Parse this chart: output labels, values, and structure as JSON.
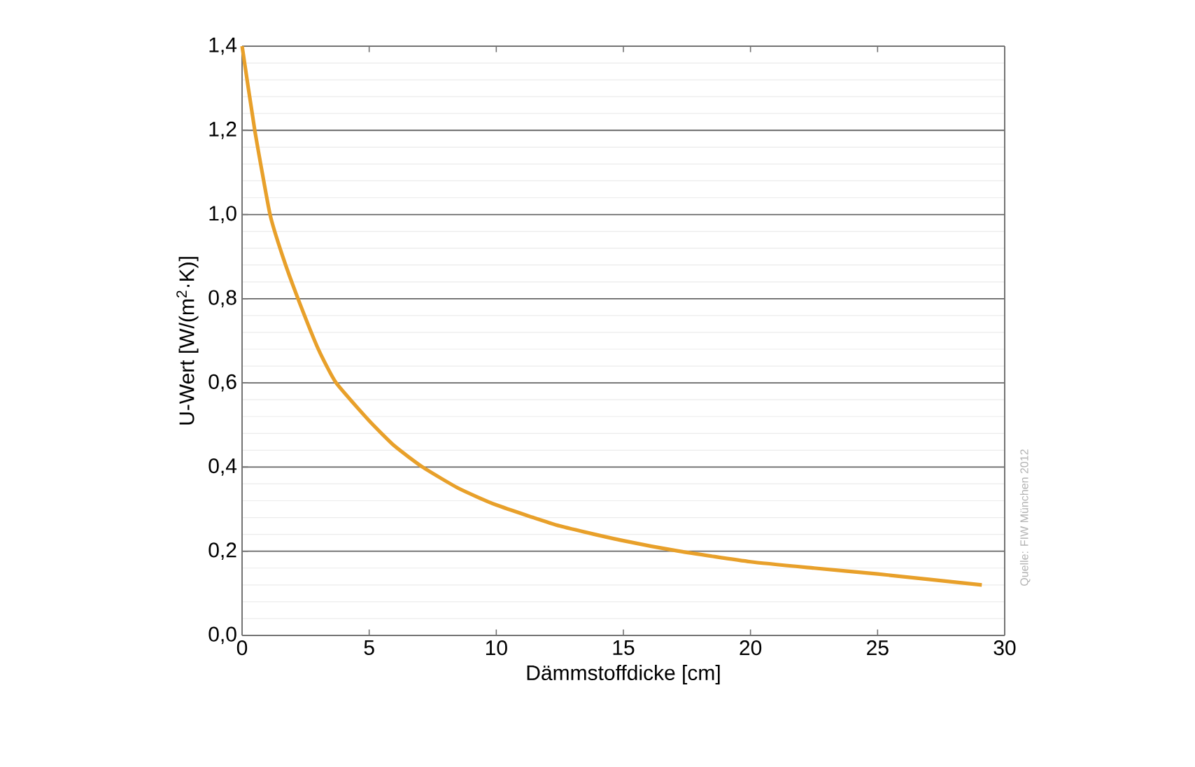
{
  "chart_data": {
    "type": "line",
    "xlabel": "Dämmstoffdicke [cm]",
    "ylabel": "U-Wert [W/(m$^{2}$·K)]",
    "x": [
      0,
      0.5,
      1.1,
      1.6,
      2.2,
      3,
      3.7,
      5,
      6,
      7.1,
      8.5,
      10,
      12.5,
      15,
      17.2,
      20,
      22.5,
      25,
      29.1
    ],
    "series": [
      {
        "color": "#e8a02a",
        "values": [
          1.4,
          1.2,
          1.0,
          0.9,
          0.8,
          0.68,
          0.6,
          0.51,
          0.45,
          0.4,
          0.35,
          0.31,
          0.26,
          0.225,
          0.2,
          0.175,
          0.16,
          0.146,
          0.12
        ]
      }
    ],
    "xlim": [
      0,
      30
    ],
    "ylim": [
      0,
      1.4
    ],
    "xticks": [
      0,
      5,
      10,
      15,
      20,
      25,
      30
    ],
    "yticks": [
      {
        "value": 0,
        "label": "0,0"
      },
      {
        "value": 0.2,
        "label": "0,2"
      },
      {
        "value": 0.4,
        "label": "0,4"
      },
      {
        "value": 0.6,
        "label": "0,6"
      },
      {
        "value": 0.8,
        "label": "0,8"
      },
      {
        "value": 1.0,
        "label": "1,0"
      },
      {
        "value": 1.2,
        "label": "1,2"
      },
      {
        "value": 1.4,
        "label": "1,4"
      }
    ],
    "grid": "y",
    "marker": "none",
    "line_style": "solid",
    "annotations": [
      "Quelle: FIW München 2012"
    ]
  }
}
